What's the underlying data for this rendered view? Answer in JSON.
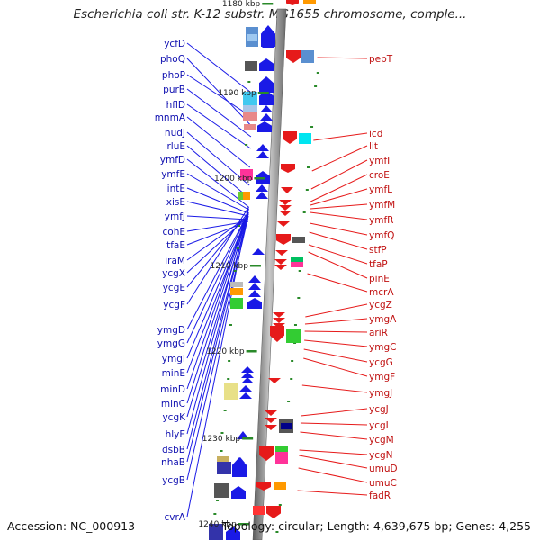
{
  "title": "Escherichia coli str. K-12 substr. MG1655 chromosome, comple...",
  "footer": {
    "accession": "Accession: NC_000913",
    "topology": "Topology: circular; Length: 4,639,675 bp; Genes: 4,255"
  },
  "colors": {
    "forward_gene": "#1a1ae6",
    "reverse_gene": "#e61a1a",
    "backbone": "#8c8c8c",
    "tick": "#2a8a2a"
  },
  "kbp_markers": [
    "1180 kbp",
    "1190 kbp",
    "1200 kbp",
    "1210 kbp",
    "1220 kbp",
    "1230 kbp",
    "1240 kbp"
  ],
  "left_genes": [
    "ycfD",
    "phoQ",
    "phoP",
    "purB",
    "hflD",
    "mnmA",
    "nudJ",
    "rluE",
    "ymfD",
    "ymfE",
    "intE",
    "xisE",
    "ymfJ",
    "cohE",
    "tfaE",
    "iraM",
    "ycgX",
    "ycgE",
    "ycgF",
    "ymgD",
    "ymgG",
    "ymgI",
    "minE",
    "minD",
    "minC",
    "ycgK",
    "hlyE",
    "dsbB",
    "nhaB",
    "ycgB",
    "cvrA"
  ],
  "right_genes": [
    "pepT",
    "icd",
    "lit",
    "ymfI",
    "croE",
    "ymfL",
    "ymfM",
    "ymfR",
    "ymfQ",
    "stfP",
    "tfaP",
    "pinE",
    "mcrA",
    "ycgZ",
    "ymgA",
    "ariR",
    "ymgC",
    "ycgG",
    "ymgF",
    "ymgJ",
    "ycgJ",
    "ycgL",
    "ycgM",
    "ycgN",
    "umuD",
    "umuC",
    "fadR"
  ]
}
